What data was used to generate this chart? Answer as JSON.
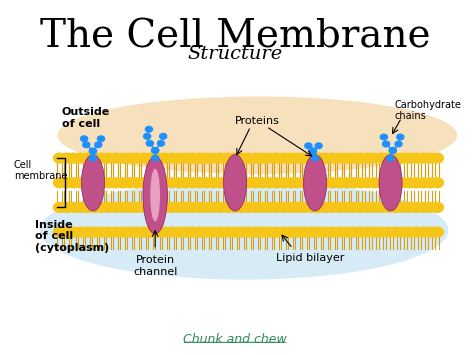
{
  "title": "The Cell Membrane",
  "subtitle": "Structure",
  "background_color": "#ffffff",
  "title_fontsize": 28,
  "subtitle_fontsize": 14,
  "labels": {
    "outside_cell": "Outside\nof cell",
    "inside_cell": "Inside\nof cell\n(cytoplasm)",
    "cell_membrane": "Cell\nmembrane",
    "proteins": "Proteins",
    "carbohydrate_chains": "Carbohydrate\nchains",
    "protein_channel": "Protein\nchannel",
    "lipid_bilayer": "Lipid bilayer"
  },
  "footer": "Chunk and chew",
  "footer_color": "#2e8b57",
  "membrane_color": "#f5c542",
  "phospholipid_head_color": "#f5c518",
  "protein_color": "#c0508a",
  "carbohydrate_color": "#1e90ff",
  "cytoplasm_color": "#add8e6"
}
